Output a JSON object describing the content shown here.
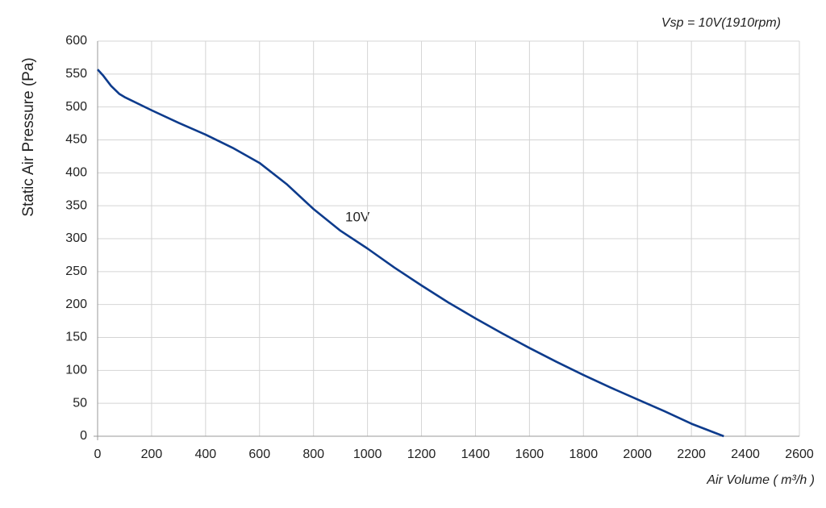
{
  "chart_data": {
    "type": "line",
    "title": "Vsp = 10V(1910rpm)",
    "x_label": "Air Volume ( m³/h )",
    "y_label": "Static Air Pressure  (Pa)",
    "x": [
      0,
      20,
      50,
      80,
      100,
      200,
      300,
      400,
      500,
      600,
      700,
      800,
      900,
      1000,
      1100,
      1200,
      1300,
      1400,
      1500,
      1600,
      1700,
      1800,
      1900,
      2000,
      2100,
      2200,
      2320
    ],
    "series": [
      {
        "name": "10V",
        "color": "#0d3b8c",
        "values": [
          557,
          548,
          532,
          520,
          515,
          495,
          476,
          458,
          438,
          415,
          383,
          345,
          312,
          285,
          256,
          229,
          203,
          179,
          156,
          134,
          113,
          93,
          74,
          56,
          38,
          19,
          0
        ]
      }
    ],
    "xlim": [
      0,
      2600
    ],
    "ylim": [
      0,
      600
    ],
    "xticks": [
      0,
      200,
      400,
      600,
      800,
      1000,
      1200,
      1400,
      1600,
      1800,
      2000,
      2200,
      2400,
      2600
    ],
    "yticks": [
      0,
      50,
      100,
      150,
      200,
      250,
      300,
      350,
      400,
      450,
      500,
      550,
      600
    ],
    "grid": true
  }
}
